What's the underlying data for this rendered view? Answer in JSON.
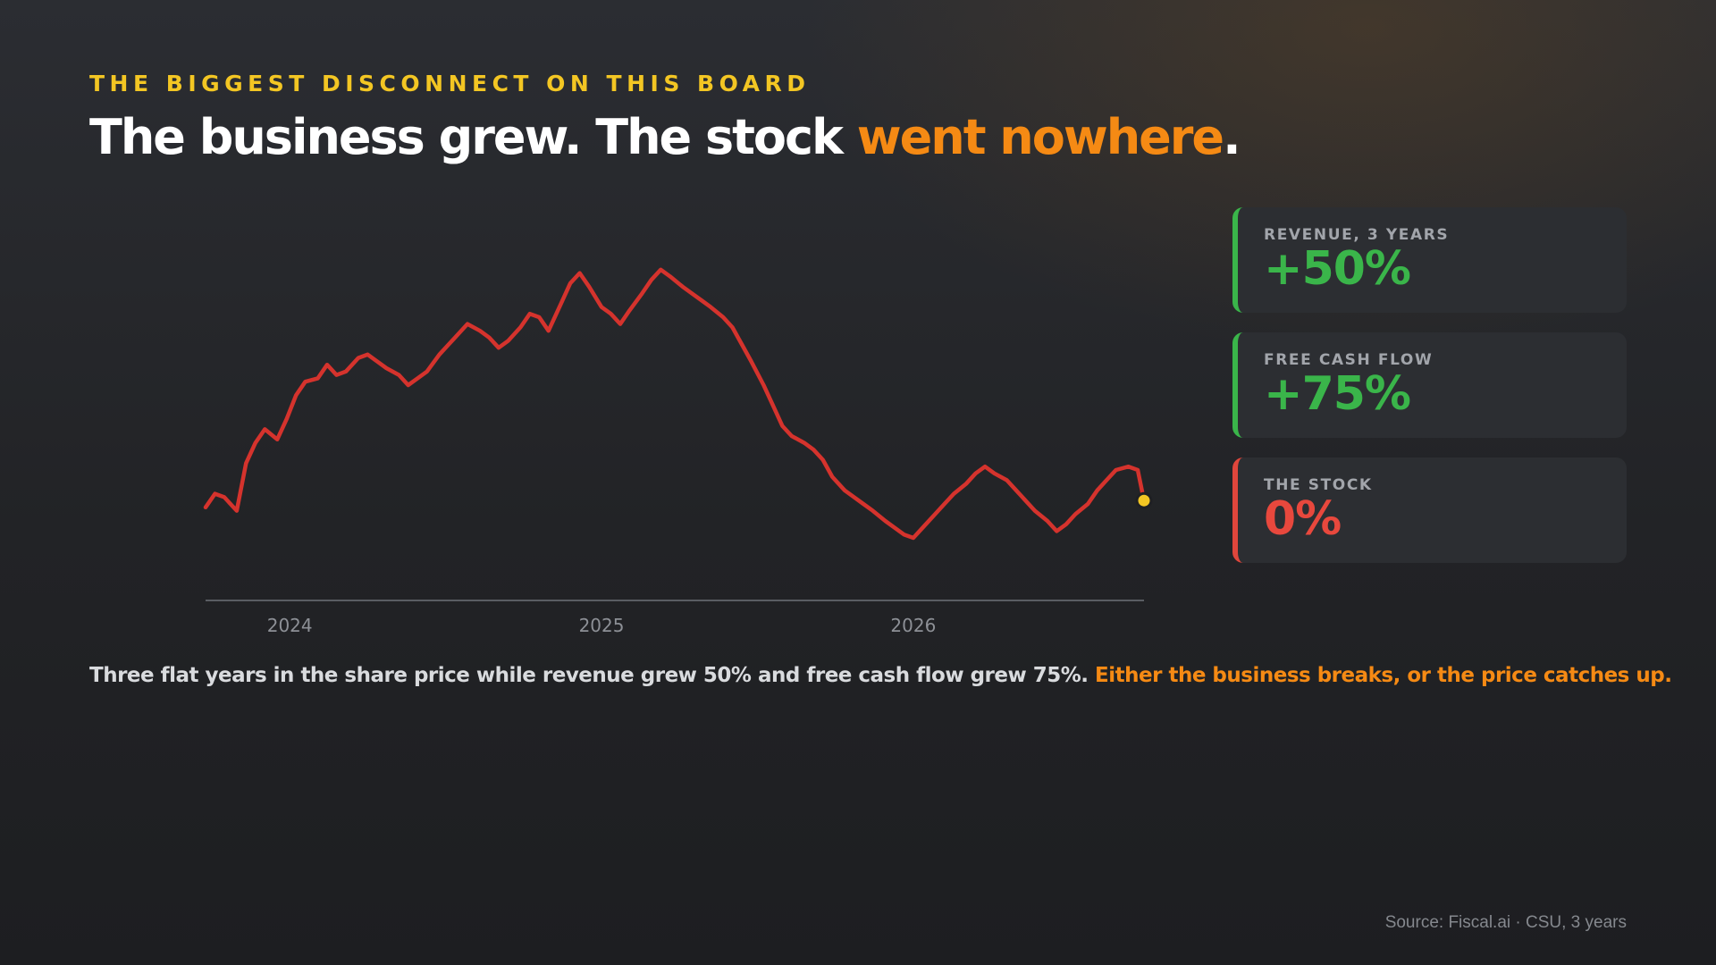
{
  "header": {
    "eyebrow": "THE BIGGEST DISCONNECT ON THIS BOARD",
    "headline_prefix": "The business grew. The stock ",
    "headline_highlight": "went nowhere",
    "headline_suffix": "."
  },
  "cards": [
    {
      "label": "REVENUE, 3 YEARS",
      "value": "+50%",
      "tone": "positive"
    },
    {
      "label": "FREE CASH FLOW",
      "value": "+75%",
      "tone": "positive"
    },
    {
      "label": "THE STOCK",
      "value": "0%",
      "tone": "negative"
    }
  ],
  "caption": {
    "main": "Three flat years in the share price while revenue grew 50% and free cash flow grew 75%. ",
    "highlight": "Either the business breaks, or the price catches up."
  },
  "source": "Source: Fiscal.ai · CSU, 3 years",
  "colors": {
    "line": "#d5332d",
    "endpoint": "#f3c623",
    "positive": "#3ab54a",
    "negative": "#e8483d",
    "accent": "#f58a14",
    "eyebrow": "#f3c623"
  },
  "chart_data": {
    "type": "line",
    "title": "",
    "xlabel": "",
    "ylabel": "",
    "x_ticks": [
      "2024",
      "2025",
      "2026"
    ],
    "x_tick_positions": [
      2024,
      2025,
      2026
    ],
    "xlim": [
      2023.73,
      2026.74
    ],
    "ylim": [
      0,
      100
    ],
    "y_axis_visible": false,
    "grid": false,
    "legend": "none",
    "series": [
      {
        "x": [
          2023.73,
          2023.76,
          2023.79,
          2023.83,
          2023.86,
          2023.89,
          2023.92,
          2023.96,
          2023.99,
          2024.02,
          2024.05,
          2024.09,
          2024.12,
          2024.15,
          2024.18,
          2024.22,
          2024.25,
          2024.28,
          2024.31,
          2024.35,
          2024.38,
          2024.41,
          2024.44,
          2024.48,
          2024.51,
          2024.54,
          2024.57,
          2024.61,
          2024.64,
          2024.67,
          2024.7,
          2024.74,
          2024.77,
          2024.8,
          2024.83,
          2024.87,
          2024.9,
          2024.93,
          2024.96,
          2025.0,
          2025.03,
          2025.06,
          2025.09,
          2025.13,
          2025.16,
          2025.19,
          2025.22,
          2025.26,
          2025.29,
          2025.32,
          2025.35,
          2025.39,
          2025.42,
          2025.45,
          2025.48,
          2025.52,
          2025.55,
          2025.58,
          2025.61,
          2025.65,
          2025.68,
          2025.71,
          2025.74,
          2025.78,
          2025.81,
          2025.84,
          2025.87,
          2025.91,
          2025.94,
          2025.97,
          2026.0,
          2026.04,
          2026.07,
          2026.1,
          2026.13,
          2026.17,
          2026.2,
          2026.23,
          2026.26,
          2026.3,
          2026.33,
          2026.36,
          2026.39,
          2026.43,
          2026.46,
          2026.49,
          2026.52,
          2026.56,
          2026.59,
          2026.62,
          2026.65,
          2026.69,
          2026.72,
          2026.74
        ],
        "y": [
          19,
          23,
          22,
          18,
          32,
          38,
          42,
          39,
          45,
          52,
          56,
          57,
          61,
          58,
          59,
          63,
          64,
          62,
          60,
          58,
          55,
          57,
          59,
          64,
          67,
          70,
          73,
          71,
          69,
          66,
          68,
          72,
          76,
          75,
          71,
          79,
          85,
          88,
          84,
          78,
          76,
          73,
          77,
          82,
          86,
          89,
          87,
          84,
          82,
          80,
          78,
          75,
          72,
          67,
          62,
          55,
          49,
          43,
          40,
          38,
          36,
          33,
          28,
          24,
          22,
          20,
          18,
          15,
          13,
          11,
          10,
          14,
          17,
          20,
          23,
          26,
          29,
          31,
          29,
          27,
          24,
          21,
          18,
          15,
          12,
          14,
          17,
          20,
          24,
          27,
          30,
          31,
          30,
          21
        ]
      }
    ]
  }
}
